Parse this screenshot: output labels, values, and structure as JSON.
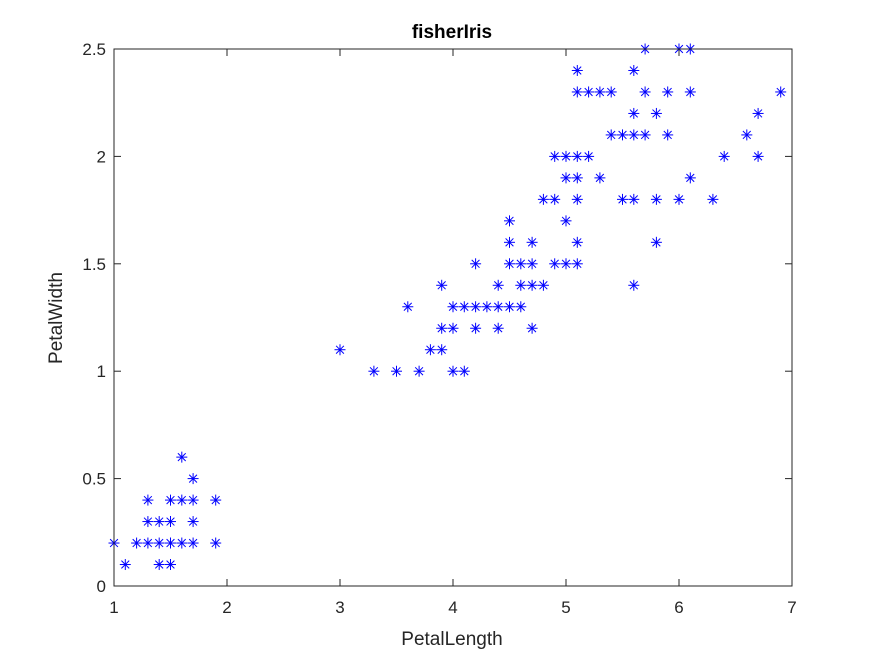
{
  "chart_data": {
    "type": "scatter",
    "title": "fisherIris",
    "xlabel": "PetalLength",
    "ylabel": "PetalWidth",
    "xlim": [
      1,
      7
    ],
    "ylim": [
      0,
      2.5
    ],
    "xticks": [
      1,
      2,
      3,
      4,
      5,
      6,
      7
    ],
    "xtick_labels": [
      "1",
      "2",
      "3",
      "4",
      "5",
      "6",
      "7"
    ],
    "yticks": [
      0,
      0.5,
      1,
      1.5,
      2,
      2.5
    ],
    "ytick_labels": [
      "0",
      "0.5",
      "1",
      "1.5",
      "2",
      "2.5"
    ],
    "grid": false,
    "marker": "*",
    "marker_color": "#0000ff",
    "series": [
      {
        "points": [
          [
            1.0,
            0.2
          ],
          [
            1.1,
            0.1
          ],
          [
            1.2,
            0.2
          ],
          [
            1.3,
            0.2
          ],
          [
            1.3,
            0.3
          ],
          [
            1.3,
            0.4
          ],
          [
            1.4,
            0.1
          ],
          [
            1.4,
            0.2
          ],
          [
            1.4,
            0.3
          ],
          [
            1.5,
            0.1
          ],
          [
            1.5,
            0.2
          ],
          [
            1.5,
            0.3
          ],
          [
            1.5,
            0.4
          ],
          [
            1.6,
            0.2
          ],
          [
            1.6,
            0.4
          ],
          [
            1.6,
            0.6
          ],
          [
            1.7,
            0.2
          ],
          [
            1.7,
            0.3
          ],
          [
            1.7,
            0.4
          ],
          [
            1.7,
            0.5
          ],
          [
            1.9,
            0.2
          ],
          [
            1.9,
            0.4
          ],
          [
            3.0,
            1.1
          ],
          [
            3.3,
            1.0
          ],
          [
            3.5,
            1.0
          ],
          [
            3.6,
            1.3
          ],
          [
            3.7,
            1.0
          ],
          [
            3.8,
            1.1
          ],
          [
            3.9,
            1.1
          ],
          [
            3.9,
            1.2
          ],
          [
            3.9,
            1.4
          ],
          [
            4.0,
            1.0
          ],
          [
            4.0,
            1.2
          ],
          [
            4.0,
            1.3
          ],
          [
            4.1,
            1.0
          ],
          [
            4.1,
            1.3
          ],
          [
            4.2,
            1.2
          ],
          [
            4.2,
            1.3
          ],
          [
            4.2,
            1.5
          ],
          [
            4.3,
            1.3
          ],
          [
            4.4,
            1.2
          ],
          [
            4.4,
            1.3
          ],
          [
            4.4,
            1.4
          ],
          [
            4.5,
            1.3
          ],
          [
            4.5,
            1.5
          ],
          [
            4.5,
            1.6
          ],
          [
            4.5,
            1.7
          ],
          [
            4.6,
            1.3
          ],
          [
            4.6,
            1.4
          ],
          [
            4.6,
            1.5
          ],
          [
            4.7,
            1.2
          ],
          [
            4.7,
            1.4
          ],
          [
            4.7,
            1.5
          ],
          [
            4.7,
            1.6
          ],
          [
            4.8,
            1.4
          ],
          [
            4.8,
            1.8
          ],
          [
            4.9,
            1.5
          ],
          [
            4.9,
            1.8
          ],
          [
            4.9,
            2.0
          ],
          [
            5.0,
            1.5
          ],
          [
            5.0,
            1.7
          ],
          [
            5.0,
            1.9
          ],
          [
            5.0,
            2.0
          ],
          [
            5.1,
            1.5
          ],
          [
            5.1,
            1.6
          ],
          [
            5.1,
            1.8
          ],
          [
            5.1,
            1.9
          ],
          [
            5.1,
            2.0
          ],
          [
            5.1,
            2.3
          ],
          [
            5.1,
            2.4
          ],
          [
            5.2,
            2.0
          ],
          [
            5.2,
            2.3
          ],
          [
            5.3,
            1.9
          ],
          [
            5.3,
            2.3
          ],
          [
            5.4,
            2.1
          ],
          [
            5.4,
            2.3
          ],
          [
            5.5,
            1.8
          ],
          [
            5.5,
            2.1
          ],
          [
            5.6,
            1.4
          ],
          [
            5.6,
            1.8
          ],
          [
            5.6,
            2.1
          ],
          [
            5.6,
            2.2
          ],
          [
            5.6,
            2.4
          ],
          [
            5.7,
            2.1
          ],
          [
            5.7,
            2.3
          ],
          [
            5.7,
            2.5
          ],
          [
            5.8,
            1.6
          ],
          [
            5.8,
            1.8
          ],
          [
            5.8,
            2.2
          ],
          [
            5.9,
            2.1
          ],
          [
            5.9,
            2.3
          ],
          [
            6.0,
            1.8
          ],
          [
            6.0,
            2.5
          ],
          [
            6.1,
            1.9
          ],
          [
            6.1,
            2.3
          ],
          [
            6.1,
            2.5
          ],
          [
            6.3,
            1.8
          ],
          [
            6.4,
            2.0
          ],
          [
            6.6,
            2.1
          ],
          [
            6.7,
            2.0
          ],
          [
            6.7,
            2.2
          ],
          [
            6.9,
            2.3
          ]
        ]
      }
    ]
  }
}
